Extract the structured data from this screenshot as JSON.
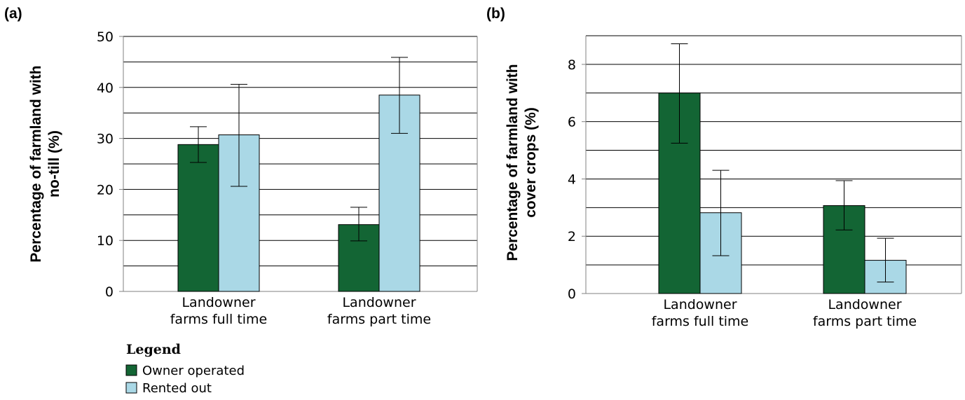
{
  "colors": {
    "owner": "#136534",
    "rented": "#aad8e6",
    "grid": "#000000",
    "axis": "#808080"
  },
  "legend": {
    "title": "Legend",
    "items": [
      {
        "label": "Owner operated",
        "color": "#136534"
      },
      {
        "label": "Rented out",
        "color": "#aad8e6"
      }
    ]
  },
  "chart_data": [
    {
      "type": "bar",
      "panel": "(a)",
      "ylabel": [
        "Percentage of farmland with",
        "no-till (%)"
      ],
      "ylim": [
        0,
        50
      ],
      "yticks": [
        0,
        10,
        20,
        30,
        40,
        50
      ],
      "grid_step": 5,
      "categories": [
        [
          "Landowner",
          "farms full time"
        ],
        [
          "Landowner",
          "farms part time"
        ]
      ],
      "series": [
        {
          "name": "Owner operated",
          "values": [
            28.8,
            13.1
          ],
          "err_low": [
            25.3,
            9.9
          ],
          "err_high": [
            32.3,
            16.5
          ]
        },
        {
          "name": "Rented out",
          "values": [
            30.7,
            38.5
          ],
          "err_low": [
            20.6,
            31.0
          ],
          "err_high": [
            40.6,
            45.9
          ]
        }
      ]
    },
    {
      "type": "bar",
      "panel": "(b)",
      "ylabel": [
        "Percentage of farmland with",
        "cover crops (%)"
      ],
      "ylim": [
        0,
        9
      ],
      "yticks": [
        0,
        2,
        4,
        6,
        8
      ],
      "grid_step": 1,
      "categories": [
        [
          "Landowner",
          "farms full time"
        ],
        [
          "Landowner",
          "farms part time"
        ]
      ],
      "series": [
        {
          "name": "Owner operated",
          "values": [
            7.0,
            3.07
          ],
          "err_low": [
            5.25,
            2.22
          ],
          "err_high": [
            8.72,
            3.94
          ]
        },
        {
          "name": "Rented out",
          "values": [
            2.82,
            1.16
          ],
          "err_low": [
            1.32,
            0.4
          ],
          "err_high": [
            4.3,
            1.93
          ]
        }
      ]
    }
  ]
}
